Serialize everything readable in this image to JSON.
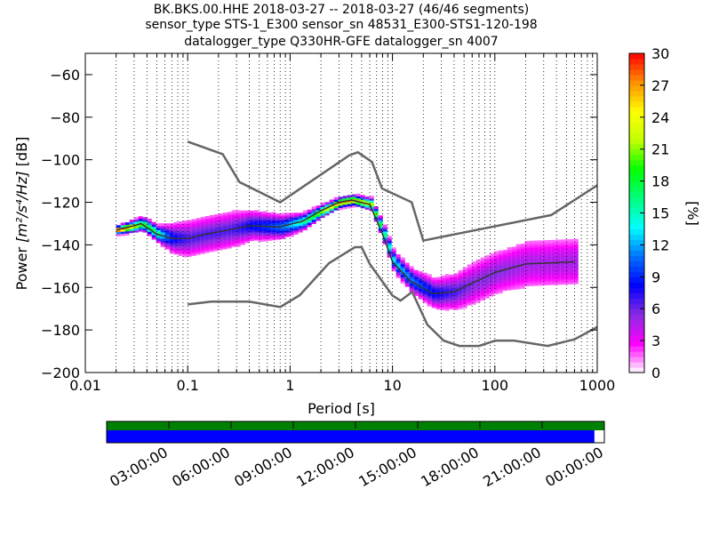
{
  "title_lines": [
    "BK.BKS.00.HHE   2018-03-27 -- 2018-03-27  (46/46 segments)",
    "sensor_type STS-1_E300 sensor_sn 48531_E300-STS1-120-198",
    "datalogger_type Q330HR-GFE datalogger_sn 4007"
  ],
  "chart_data": {
    "type": "heatmap",
    "xlabel": "Period [s]",
    "ylabel_prefix": "Power ",
    "ylabel_units": "[m²/s⁴/Hz]",
    "ylabel_suffix": " [dB]",
    "xscale": "log",
    "xlim": [
      0.01,
      1000
    ],
    "ylim": [
      -200,
      -50
    ],
    "x_ticks": [
      0.01,
      0.1,
      1,
      10,
      100,
      1000
    ],
    "x_tick_labels": [
      "0.01",
      "0.1",
      "1",
      "10",
      "100",
      "1000"
    ],
    "y_ticks": [
      -200,
      -180,
      -160,
      -140,
      -120,
      -100,
      -80,
      -60
    ],
    "y_tick_labels": [
      "−200",
      "−180",
      "−160",
      "−140",
      "−120",
      "−100",
      "−80",
      "−60"
    ],
    "grid": "dotted-vertical",
    "nhnm": [
      [
        0.1,
        -168
      ],
      [
        0.17,
        -166.7
      ],
      [
        0.4,
        -166.7
      ],
      [
        0.8,
        -169.2
      ],
      [
        1.24,
        -163.7
      ],
      [
        2.4,
        -148.6
      ],
      [
        4.3,
        -141.1
      ],
      [
        5,
        -141.1
      ],
      [
        6,
        -149
      ],
      [
        10,
        -163.8
      ],
      [
        12,
        -166.2
      ],
      [
        15.6,
        -162.1
      ],
      [
        21.9,
        -177.5
      ],
      [
        31.6,
        -185
      ],
      [
        45,
        -187.5
      ],
      [
        70,
        -187.5
      ],
      [
        101,
        -185
      ],
      [
        154,
        -185
      ],
      [
        328,
        -187.5
      ],
      [
        600,
        -184.4
      ],
      [
        1000,
        -178.6
      ]
    ],
    "nlnm": [
      [
        0.1,
        -91.5
      ],
      [
        0.22,
        -97.4
      ],
      [
        0.32,
        -110.5
      ],
      [
        0.8,
        -120
      ],
      [
        3.8,
        -97.9
      ],
      [
        4.6,
        -96.5
      ],
      [
        6.3,
        -101
      ],
      [
        7.9,
        -113.5
      ],
      [
        15.4,
        -120
      ],
      [
        20,
        -138
      ],
      [
        354.8,
        -126
      ],
      [
        1000,
        -112
      ]
    ],
    "psd_mode": [
      [
        0.02,
        -133
      ],
      [
        0.03,
        -131
      ],
      [
        0.035,
        -130
      ],
      [
        0.05,
        -135
      ],
      [
        0.07,
        -137
      ],
      [
        0.1,
        -137
      ],
      [
        0.15,
        -135
      ],
      [
        0.25,
        -133
      ],
      [
        0.4,
        -131
      ],
      [
        0.8,
        -131.5
      ],
      [
        1.3,
        -129
      ],
      [
        2,
        -124
      ],
      [
        3,
        -120
      ],
      [
        4,
        -119
      ],
      [
        6,
        -121
      ],
      [
        8,
        -135
      ],
      [
        10,
        -148
      ],
      [
        15,
        -157
      ],
      [
        25,
        -163
      ],
      [
        40,
        -162
      ],
      [
        60,
        -158
      ],
      [
        100,
        -153
      ],
      [
        200,
        -149
      ],
      [
        600,
        -148
      ]
    ],
    "psd_spread": [
      [
        0.02,
        1
      ],
      [
        0.03,
        1.5
      ],
      [
        0.05,
        2
      ],
      [
        0.07,
        4
      ],
      [
        0.1,
        5
      ],
      [
        0.15,
        5
      ],
      [
        0.25,
        5
      ],
      [
        0.4,
        4
      ],
      [
        0.8,
        3
      ],
      [
        1.3,
        2
      ],
      [
        2,
        1.5
      ],
      [
        3,
        1.2
      ],
      [
        4,
        1.2
      ],
      [
        6,
        1.5
      ],
      [
        8,
        2
      ],
      [
        10,
        2.5
      ],
      [
        15,
        3
      ],
      [
        25,
        4
      ],
      [
        40,
        5
      ],
      [
        60,
        6
      ],
      [
        100,
        6
      ],
      [
        200,
        7
      ],
      [
        600,
        7
      ]
    ],
    "colorbar": {
      "label": "[%]",
      "min": 0,
      "max": 30,
      "ticks": [
        0,
        3,
        6,
        9,
        12,
        15,
        18,
        21,
        24,
        27,
        30
      ],
      "colors": [
        "#ffffff",
        "#ff00ff",
        "#8a2be2",
        "#0000ff",
        "#0070ff",
        "#00ffff",
        "#00ff80",
        "#00ff00",
        "#c0ff00",
        "#ffff00",
        "#ff9000",
        "#ff0000"
      ]
    },
    "data_coverage": {
      "time_ticks": [
        "03:00:00",
        "06:00:00",
        "09:00:00",
        "12:00:00",
        "15:00:00",
        "18:00:00",
        "21:00:00",
        "00:00:00"
      ],
      "top_bar_color": "#008000",
      "bottom_bar_color": "#0000ff",
      "bottom_bar_fraction": 0.98
    }
  }
}
